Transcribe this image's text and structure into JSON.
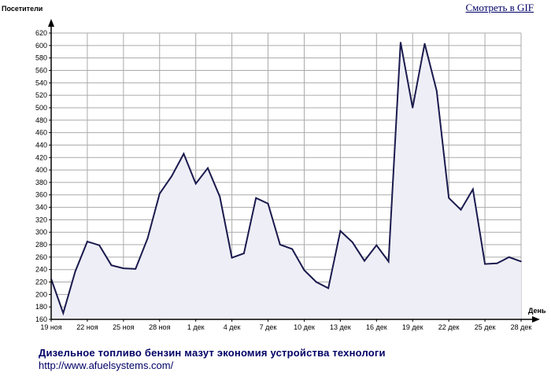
{
  "link": {
    "label": "Смотреть в GIF"
  },
  "footer": {
    "title": "Дизельное топливо бензин мазут экономия устройства технологи",
    "url": "http://www.afuelsystems.com/"
  },
  "chart_data": {
    "type": "area",
    "title": "",
    "ylabel": "Посетители",
    "xlabel": "День",
    "ylim": [
      160,
      620
    ],
    "y_ticks": [
      160,
      180,
      200,
      220,
      240,
      260,
      280,
      300,
      320,
      340,
      360,
      380,
      400,
      420,
      440,
      460,
      480,
      500,
      520,
      540,
      560,
      580,
      600,
      620
    ],
    "x_ticks": [
      "19 ноя",
      "22 ноя",
      "25 ноя",
      "28 ноя",
      "1 дек",
      "4 дек",
      "7 дек",
      "10 дек",
      "13 дек",
      "16 дек",
      "19 дек",
      "22 дек",
      "25 дек",
      "28 дек"
    ],
    "grid": true,
    "series": [
      {
        "values": [
          225,
          170,
          237,
          285,
          279,
          247,
          242,
          241,
          290,
          362,
          390,
          426,
          378,
          403,
          357,
          259,
          266,
          355,
          346,
          280,
          273,
          239,
          220,
          210,
          302,
          284,
          254,
          279,
          253,
          605,
          500,
          603,
          527,
          355,
          336,
          369,
          249,
          250,
          260,
          253
        ]
      }
    ],
    "colors": {
      "line": "#1a1a4e",
      "fill": "#eeeef6",
      "grid": "#aaaaaa"
    }
  }
}
